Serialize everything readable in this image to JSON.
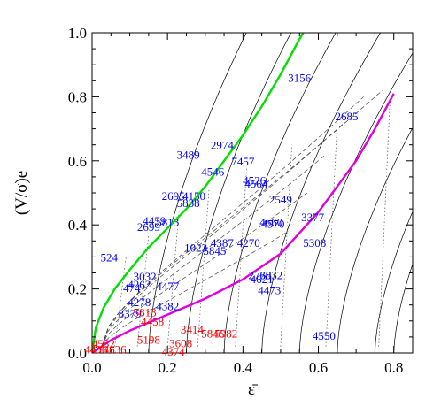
{
  "chart_data": {
    "type": "scatter",
    "xlabel": "ε̄",
    "ylabel": "(V/σ)e",
    "xlim": [
      0,
      0.85
    ],
    "ylim": [
      0,
      1.0
    ],
    "x_ticks": [
      "0.0",
      "0.2",
      "0.4",
      "0.6",
      "0.8"
    ],
    "y_ticks": [
      "0.0",
      "0.2",
      "0.4",
      "0.6",
      "0.8",
      "1.0"
    ],
    "grid": false,
    "colors": {
      "fast_rotators": "#0000ff",
      "slow_rotators": "#ff0000",
      "green_curve": "#00e000",
      "magenta_curve": "#e000e0"
    },
    "series": [
      {
        "color_key": "fast_rotators",
        "points": [
          {
            "label": "3156",
            "x": 0.55,
            "y": 0.86
          },
          {
            "label": "2685",
            "x": 0.675,
            "y": 0.74
          },
          {
            "label": "2974",
            "x": 0.345,
            "y": 0.65
          },
          {
            "label": "3489",
            "x": 0.255,
            "y": 0.62
          },
          {
            "label": "7457",
            "x": 0.4,
            "y": 0.6
          },
          {
            "label": "4546",
            "x": 0.32,
            "y": 0.567
          },
          {
            "label": "4526",
            "x": 0.43,
            "y": 0.54
          },
          {
            "label": "4564",
            "x": 0.435,
            "y": 0.53
          },
          {
            "label": "2695",
            "x": 0.215,
            "y": 0.492
          },
          {
            "label": "4150",
            "x": 0.27,
            "y": 0.492
          },
          {
            "label": "5838",
            "x": 0.255,
            "y": 0.47
          },
          {
            "label": "2549",
            "x": 0.5,
            "y": 0.48
          },
          {
            "label": "3377",
            "x": 0.585,
            "y": 0.425
          },
          {
            "label": "4459",
            "x": 0.165,
            "y": 0.415
          },
          {
            "label": "5813",
            "x": 0.2,
            "y": 0.41
          },
          {
            "label": "2699",
            "x": 0.15,
            "y": 0.395
          },
          {
            "label": "4660",
            "x": 0.475,
            "y": 0.41
          },
          {
            "label": "4570",
            "x": 0.48,
            "y": 0.405
          },
          {
            "label": "4387",
            "x": 0.345,
            "y": 0.345
          },
          {
            "label": "4270",
            "x": 0.415,
            "y": 0.345
          },
          {
            "label": "5308",
            "x": 0.59,
            "y": 0.345
          },
          {
            "label": "1023",
            "x": 0.275,
            "y": 0.33
          },
          {
            "label": "5845",
            "x": 0.325,
            "y": 0.32
          },
          {
            "label": "524",
            "x": 0.045,
            "y": 0.3
          },
          {
            "label": "3032",
            "x": 0.14,
            "y": 0.24
          },
          {
            "label": "2768",
            "x": 0.445,
            "y": 0.245
          },
          {
            "label": "4621",
            "x": 0.45,
            "y": 0.232
          },
          {
            "label": "3032",
            "x": 0.475,
            "y": 0.245
          },
          {
            "label": "4262",
            "x": 0.125,
            "y": 0.215
          },
          {
            "label": "4477",
            "x": 0.2,
            "y": 0.21
          },
          {
            "label": "474",
            "x": 0.105,
            "y": 0.205
          },
          {
            "label": "4473",
            "x": 0.47,
            "y": 0.198
          },
          {
            "label": "4278",
            "x": 0.125,
            "y": 0.16
          },
          {
            "label": "4382",
            "x": 0.2,
            "y": 0.148
          },
          {
            "label": "3379",
            "x": 0.1,
            "y": 0.125
          },
          {
            "label": "4550",
            "x": 0.615,
            "y": 0.055
          }
        ]
      },
      {
        "color_key": "slow_rotators",
        "points": [
          {
            "label": "5813",
            "x": 0.14,
            "y": 0.128
          },
          {
            "label": "4458",
            "x": 0.16,
            "y": 0.1
          },
          {
            "label": "3414",
            "x": 0.265,
            "y": 0.075
          },
          {
            "label": "5846",
            "x": 0.32,
            "y": 0.062
          },
          {
            "label": "5982",
            "x": 0.355,
            "y": 0.062
          },
          {
            "label": "4552",
            "x": 0.03,
            "y": 0.03
          },
          {
            "label": "5198",
            "x": 0.15,
            "y": 0.043
          },
          {
            "label": "3608",
            "x": 0.235,
            "y": 0.032
          },
          {
            "label": "4486",
            "x": 0.01,
            "y": 0.013
          },
          {
            "label": "4636",
            "x": 0.06,
            "y": 0.013
          },
          {
            "label": "4374",
            "x": 0.215,
            "y": 0.005
          }
        ]
      }
    ],
    "curves": [
      {
        "color_key": "green_curve",
        "x": [
          0,
          0.01,
          0.03,
          0.06,
          0.1,
          0.15,
          0.2,
          0.25,
          0.3,
          0.35,
          0.4,
          0.45,
          0.5,
          0.55,
          0.56
        ],
        "y": [
          0,
          0.08,
          0.14,
          0.2,
          0.26,
          0.33,
          0.39,
          0.45,
          0.52,
          0.6,
          0.68,
          0.77,
          0.87,
          0.98,
          1.0
        ]
      },
      {
        "color_key": "magenta_curve",
        "x": [
          0,
          0.05,
          0.1,
          0.2,
          0.3,
          0.4,
          0.5,
          0.6,
          0.7,
          0.75,
          0.8
        ],
        "y": [
          0,
          0.04,
          0.07,
          0.12,
          0.17,
          0.23,
          0.31,
          0.44,
          0.6,
          0.7,
          0.81
        ]
      }
    ]
  }
}
